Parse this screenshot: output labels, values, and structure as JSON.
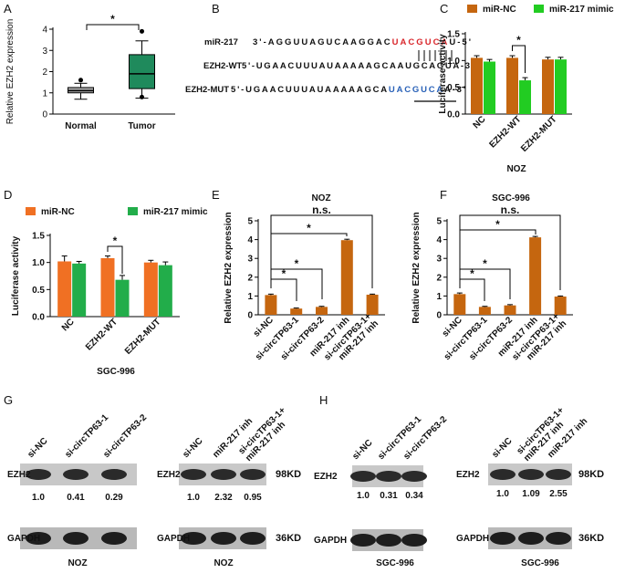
{
  "chart_data": [
    {
      "type": "box",
      "ylabel": "Relative EZH2 expression",
      "categories": [
        "Normal",
        "Tumor"
      ],
      "colors": [
        "#a8a8a8",
        "#1f8a5c"
      ],
      "boxes": [
        {
          "min": 0.7,
          "q1": 1.0,
          "median": 1.1,
          "q3": 1.25,
          "max": 1.45,
          "outliers": [
            1.6
          ]
        },
        {
          "min": 0.75,
          "q1": 1.2,
          "median": 1.9,
          "q3": 2.8,
          "max": 3.45,
          "outliers": [
            3.9,
            0.8
          ]
        }
      ],
      "ylim": [
        0,
        4
      ],
      "yticks": [
        0,
        1,
        2,
        3,
        4
      ],
      "significance": [
        "*"
      ]
    },
    {
      "type": "bar",
      "ylabel": "Luciferase activity",
      "xlabel": "NOZ",
      "categories": [
        "NC",
        "EZH2-WT",
        "EZH2-MUT"
      ],
      "series": [
        {
          "name": "miR-NC",
          "color": "#c5660f",
          "values": [
            1.05,
            1.05,
            1.02
          ],
          "errors": [
            0.04,
            0.04,
            0.04
          ]
        },
        {
          "name": "miR-217 mimic",
          "color": "#22cc22",
          "values": [
            0.98,
            0.63,
            1.02
          ],
          "errors": [
            0.04,
            0.05,
            0.04
          ]
        }
      ],
      "ylim": [
        0,
        1.5
      ],
      "yticks": [
        {
          "value": 0,
          "label": "0.0"
        },
        0.5,
        {
          "value": 1,
          "label": "1.0"
        },
        1.5
      ],
      "significance": [
        "*"
      ]
    },
    {
      "type": "bar",
      "ylabel": "Luciferase activity",
      "xlabel": "SGC-996",
      "categories": [
        "NC",
        "EZH2-WT",
        "EZH2-MUT"
      ],
      "series": [
        {
          "name": "miR-NC",
          "color": "#f07023",
          "values": [
            1.02,
            1.08,
            1.0
          ],
          "errors": [
            0.1,
            0.04,
            0.04
          ]
        },
        {
          "name": "miR-217 mimic",
          "color": "#22ad4a",
          "values": [
            0.98,
            0.68,
            0.95
          ],
          "errors": [
            0.04,
            0.08,
            0.06
          ]
        }
      ],
      "ylim": [
        0,
        1.5
      ],
      "yticks": [
        {
          "value": 0,
          "label": "0.0"
        },
        0.5,
        {
          "value": 1,
          "label": "1.0"
        },
        1.5
      ],
      "significance": [
        "*"
      ]
    },
    {
      "type": "bar",
      "title": "NOZ",
      "ylabel": "Relative EZH2 expression",
      "categories": [
        "si-NC",
        "si-circTP63-1",
        "si-circTP63-2",
        "miR-217 inh",
        "si-circTP63-1+\nmiR-217 inh"
      ],
      "series": [
        {
          "color": "#c5660f",
          "values": [
            1.05,
            0.33,
            0.42,
            3.97,
            1.07
          ],
          "errors": [
            0.05,
            0.03,
            0.03,
            0.05,
            0.03
          ]
        }
      ],
      "ylim": [
        0,
        5
      ],
      "yticks": [
        0,
        1,
        2,
        3,
        4,
        5
      ],
      "significance": [
        "*",
        "*",
        "*",
        "n.s."
      ]
    },
    {
      "type": "bar",
      "title": "SGC-996",
      "ylabel": "Relative EZH2 expression",
      "categories": [
        "si-NC",
        "si-circTP63-1",
        "si-circTP63-2",
        "miR-217 inh",
        "si-circTP63-1+\nmiR-217 inh"
      ],
      "series": [
        {
          "color": "#c5660f",
          "values": [
            1.1,
            0.42,
            0.5,
            4.12,
            0.97
          ],
          "errors": [
            0.06,
            0.03,
            0.04,
            0.05,
            0.03
          ]
        }
      ],
      "ylim": [
        0,
        5
      ],
      "yticks": [
        0,
        1,
        2,
        3,
        4,
        5
      ],
      "significance": [
        "*",
        "*",
        "*",
        "n.s."
      ]
    }
  ],
  "figure": {
    "panel_labels": [
      "A",
      "B",
      "C",
      "D",
      "E",
      "F",
      "G",
      "H"
    ],
    "panel_b": {
      "rows": [
        {
          "name": "miR-217",
          "parts": [
            "3'-AGGUUAGUCAAGGAC",
            "UACGUCA",
            "U-5'"
          ]
        },
        {
          "name": "EZH2-WT",
          "parts": [
            "5'-UGAACUUUAUAAAAAGCAAUGCAGUA-3'"
          ]
        },
        {
          "name": "EZH2-MUT",
          "parts": [
            "5'-UGAACUUUAUAAAAAGCA",
            "UACGUCA",
            "A-3'"
          ]
        }
      ]
    },
    "blots": [
      {
        "lanes": [
          "si-NC",
          "si-circTP63-1",
          "si-circTP63-2"
        ],
        "rows": [
          "EZH2",
          "GAPDH"
        ],
        "ratios": [
          "1.0",
          "0.41",
          "0.29"
        ],
        "cell": "NOZ"
      },
      {
        "lanes": [
          "si-NC",
          "miR-217 inh",
          "si-circTP63-1+\nmiR-217 inh"
        ],
        "rows": [
          "EZH2",
          "GAPDH"
        ],
        "ratios": [
          "1.0",
          "2.32",
          "0.95"
        ],
        "sizes": [
          "98KD",
          "36KD"
        ],
        "cell": "NOZ"
      },
      {
        "lanes": [
          "si-NC",
          "si-circTP63-1",
          "si-circTP63-2"
        ],
        "rows": [
          "EZH2",
          "GAPDH"
        ],
        "ratios": [
          "1.0",
          "0.31",
          "0.34"
        ],
        "cell": "SGC-996"
      },
      {
        "lanes": [
          "si-NC",
          "si-circTP63-1+\nmiR-217 inh",
          "miR-217 inh"
        ],
        "rows": [
          "EZH2",
          "GAPDH"
        ],
        "ratios": [
          "1.0",
          "1.09",
          "2.55"
        ],
        "sizes": [
          "98KD",
          "36KD"
        ],
        "cell": "SGC-996"
      }
    ]
  }
}
